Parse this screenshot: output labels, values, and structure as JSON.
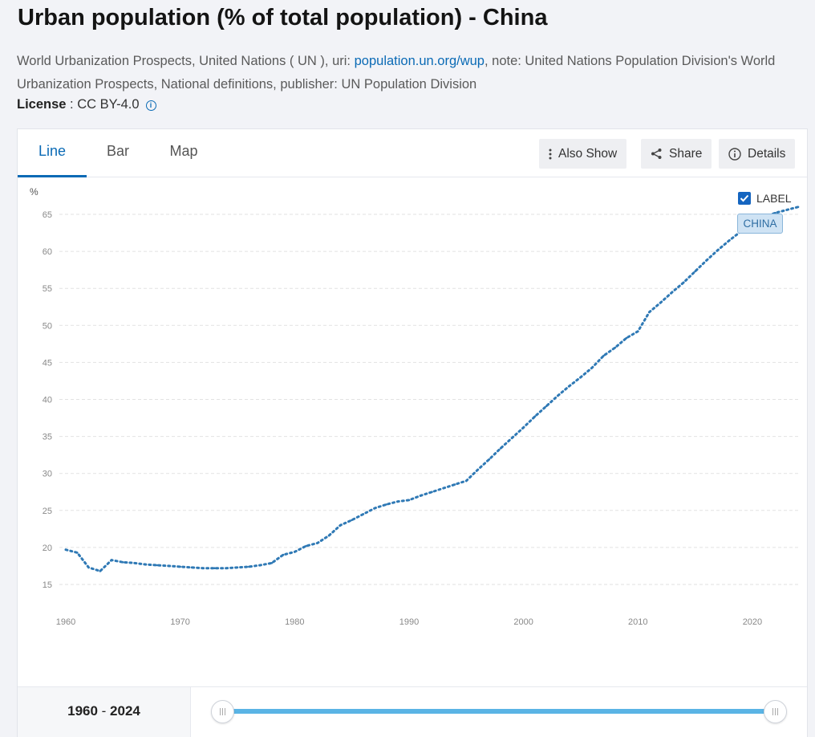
{
  "page": {
    "title": "Urban population (% of total population) - China",
    "source_prefix": "World Urbanization Prospects, United Nations ( UN ), uri: ",
    "source_link": "population.un.org/wup",
    "source_suffix": ", note: United Nations Population Division's World Urbanization Prospects, National definitions, publisher: UN Population Division",
    "license_label": "License",
    "license_value": " : CC BY-4.0"
  },
  "tabs": [
    {
      "label": "Line",
      "active": true
    },
    {
      "label": "Bar",
      "active": false
    },
    {
      "label": "Map",
      "active": false
    }
  ],
  "toolbar": {
    "also_show": "Also Show",
    "share": "Share",
    "details": "Details"
  },
  "legend": {
    "label_toggle": "LABEL",
    "series_tag": "CHINA"
  },
  "range": {
    "start": "1960",
    "separator": " - ",
    "end": "2024"
  },
  "colors": {
    "series": "#2f79b5",
    "accent": "#0a6ab5",
    "slider": "#5ab4e5"
  },
  "chart_data": {
    "type": "line",
    "title": "Urban population (% of total population) - China",
    "ylabel": "%",
    "xlabel": "",
    "ylim": [
      15,
      65
    ],
    "yticks": [
      15,
      20,
      25,
      30,
      35,
      40,
      45,
      50,
      55,
      60,
      65
    ],
    "xticks": [
      1960,
      1970,
      1980,
      1990,
      2000,
      2010,
      2020
    ],
    "xlim": [
      1960,
      2024
    ],
    "grid": true,
    "series": [
      {
        "name": "CHINA",
        "x": [
          1960,
          1961,
          1962,
          1963,
          1964,
          1965,
          1966,
          1967,
          1968,
          1969,
          1970,
          1971,
          1972,
          1973,
          1974,
          1975,
          1976,
          1977,
          1978,
          1979,
          1980,
          1981,
          1982,
          1983,
          1984,
          1985,
          1986,
          1987,
          1988,
          1989,
          1990,
          1991,
          1992,
          1993,
          1994,
          1995,
          1996,
          1997,
          1998,
          1999,
          2000,
          2001,
          2002,
          2003,
          2004,
          2005,
          2006,
          2007,
          2008,
          2009,
          2010,
          2011,
          2012,
          2013,
          2014,
          2015,
          2016,
          2017,
          2018,
          2019,
          2020,
          2021,
          2022,
          2023,
          2024
        ],
        "values": [
          19.7,
          19.3,
          17.3,
          16.8,
          18.3,
          18.0,
          17.9,
          17.7,
          17.6,
          17.5,
          17.4,
          17.3,
          17.2,
          17.2,
          17.2,
          17.3,
          17.4,
          17.6,
          17.9,
          19.0,
          19.4,
          20.2,
          20.6,
          21.6,
          23.0,
          23.7,
          24.5,
          25.3,
          25.8,
          26.2,
          26.4,
          27.0,
          27.5,
          28.0,
          28.5,
          29.0,
          30.5,
          31.9,
          33.4,
          34.8,
          36.2,
          37.7,
          39.1,
          40.5,
          41.8,
          43.0,
          44.3,
          45.9,
          47.0,
          48.3,
          49.2,
          51.8,
          53.1,
          54.5,
          55.8,
          57.3,
          58.8,
          60.2,
          61.5,
          62.7,
          63.8,
          64.6,
          65.2,
          65.6,
          66.0
        ]
      }
    ]
  }
}
